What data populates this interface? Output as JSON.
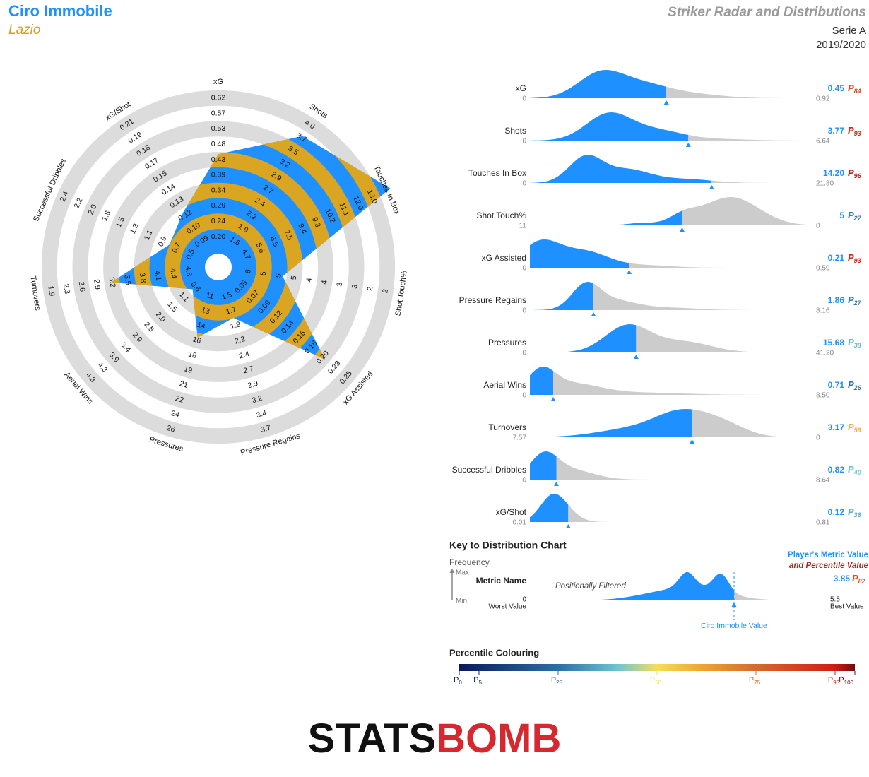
{
  "header": {
    "player": "Ciro Immobile",
    "team": "Lazio",
    "title": "Striker Radar and Distributions",
    "competition": "Serie A",
    "season": "2019/2020"
  },
  "percentile_prefix": "P",
  "radar": {
    "axes": [
      {
        "name": "xG",
        "ticks": [
          "0.20",
          "0.24",
          "0.29",
          "0.34",
          "0.39",
          "0.43",
          "0.48",
          "0.53",
          "0.57",
          "0.62"
        ]
      },
      {
        "name": "Shots",
        "ticks": [
          "1.6",
          "1.9",
          "2.2",
          "2.4",
          "2.7",
          "2.9",
          "3.2",
          "3.5",
          "3.7",
          "4.0"
        ]
      },
      {
        "name": "Touches In Box",
        "ticks": [
          "4.7",
          "5.6",
          "6.5",
          "7.5",
          "8.4",
          "9.3",
          "10.2",
          "11.1",
          "12.0",
          "13.0"
        ]
      },
      {
        "name": "Shot Touch%",
        "ticks": [
          "6",
          "5",
          "5",
          "5",
          "4",
          "4",
          "3",
          "3",
          "2",
          "2"
        ]
      },
      {
        "name": "xG Assisted",
        "ticks": [
          "0.05",
          "0.07",
          "0.09",
          "0.12",
          "0.14",
          "0.16",
          "0.18",
          "0.20",
          "0.23",
          "0.25"
        ]
      },
      {
        "name": "Pressure Regains",
        "ticks": [
          "1.5",
          "1.7",
          "1.9",
          "2.2",
          "2.4",
          "2.7",
          "2.9",
          "3.2",
          "3.4",
          "3.7"
        ]
      },
      {
        "name": "Pressures",
        "ticks": [
          "11",
          "13",
          "14",
          "16",
          "18",
          "19",
          "21",
          "22",
          "24",
          "26"
        ]
      },
      {
        "name": "Aerial Wins",
        "ticks": [
          "0.6",
          "1.1",
          "1.5",
          "2.0",
          "2.5",
          "2.9",
          "3.4",
          "3.9",
          "4.3",
          "4.8"
        ]
      },
      {
        "name": "Turnovers",
        "ticks": [
          "4.8",
          "4.4",
          "4.1",
          "3.8",
          "3.5",
          "3.2",
          "2.9",
          "2.6",
          "2.3",
          "1.9"
        ]
      },
      {
        "name": "Successful Dribbles",
        "ticks": [
          "0.5",
          "0.7",
          "0.9",
          "1.1",
          "1.3",
          "1.5",
          "1.8",
          "2.0",
          "2.2",
          "2.4"
        ]
      },
      {
        "name": "xG/Shot",
        "ticks": [
          "0.09",
          "0.10",
          "0.12",
          "0.13",
          "0.14",
          "0.15",
          "0.17",
          "0.18",
          "0.19",
          "0.21"
        ]
      }
    ]
  },
  "distributions": {
    "rows": [
      {
        "name": "xG",
        "min": "0",
        "max": "0.92",
        "value": 0.45,
        "percentile": 84
      },
      {
        "name": "Shots",
        "min": "0",
        "max": "6.64",
        "value": 3.77,
        "percentile": 93
      },
      {
        "name": "Touches In Box",
        "min": "0",
        "max": "21.80",
        "value": 14.2,
        "value_label": "14.20",
        "percentile": 96
      },
      {
        "name": "Shot Touch%",
        "min": "11",
        "max": "0",
        "value": 5,
        "percentile": 27
      },
      {
        "name": "xG Assisted",
        "min": "0",
        "max": "0.59",
        "value": 0.21,
        "percentile": 93
      },
      {
        "name": "Pressure Regains",
        "min": "0",
        "max": "8.16",
        "value": 1.86,
        "percentile": 27
      },
      {
        "name": "Pressures",
        "min": "0",
        "max": "41.20",
        "value": 15.68,
        "percentile": 38
      },
      {
        "name": "Aerial Wins",
        "min": "0",
        "max": "8.50",
        "value": 0.71,
        "percentile": 26
      },
      {
        "name": "Turnovers",
        "min": "7.57",
        "max": "0",
        "value": 3.17,
        "percentile": 59
      },
      {
        "name": "Successful Dribbles",
        "min": "0",
        "max": "8.64",
        "value": 0.82,
        "percentile": 40
      },
      {
        "name": "xG/Shot",
        "min": "0.01",
        "max": "0.81",
        "value": 0.12,
        "percentile": 36
      }
    ]
  },
  "key": {
    "title": "Key to Distribution Chart",
    "frequency": "Frequency",
    "max": "Max",
    "min": "Min",
    "metric_name": "Metric Name",
    "filter_note": "Positionally Filtered",
    "worst": "0",
    "worst_label": "Worst Value",
    "best": "5.5",
    "best_label": "Best Value",
    "value": 3.85,
    "percentile": 82,
    "value_title": "Player's Metric Value",
    "percentile_title": "and Percentile Value",
    "marker_label": "Ciro Immobile Value"
  },
  "percentile_scale": {
    "title": "Percentile Colouring",
    "ticks": [
      0,
      5,
      25,
      50,
      75,
      95,
      100
    ]
  },
  "logo": {
    "first": "STATS",
    "second": "BOMB"
  }
}
